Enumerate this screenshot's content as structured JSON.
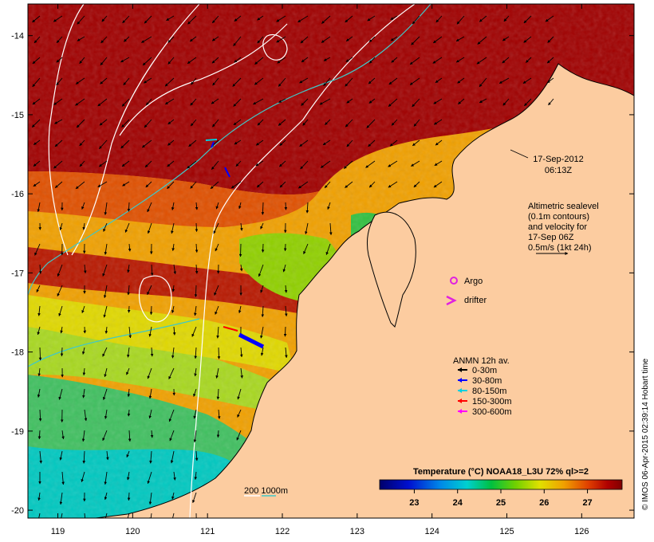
{
  "map": {
    "lon_range": [
      118.6,
      126.7
    ],
    "lat_range": [
      -20.1,
      -13.6
    ],
    "lon_ticks": [
      "119",
      "120",
      "121",
      "122",
      "123",
      "124",
      "125",
      "126"
    ],
    "lat_ticks": [
      "-14",
      "-15",
      "-16",
      "-17",
      "-18",
      "-19",
      "-20"
    ]
  },
  "timestamp": {
    "date": "17-Sep-2012",
    "time": "06:13Z"
  },
  "altimetry_note": {
    "lines": [
      "Altimetric sealevel",
      "(0.1m contours)",
      "and velocity for",
      "17-Sep 06Z",
      "0.5m/s (1kt 24h)"
    ]
  },
  "markers": {
    "argo_label": "Argo",
    "drifter_label": "drifter",
    "argo_color": "#e020e0",
    "drifter_color": "#e020e0"
  },
  "anmn_legend": {
    "title": "ANMN 12h av.",
    "items": [
      {
        "label": "0-30m",
        "color": "#000000"
      },
      {
        "label": "30-80m",
        "color": "#0000ff"
      },
      {
        "label": "80-150m",
        "color": "#00d0e0"
      },
      {
        "label": "150-300m",
        "color": "#ff0000"
      },
      {
        "label": "300-600m",
        "color": "#ff00ff"
      }
    ]
  },
  "colorbar": {
    "title": "Temperature (°C) NOAA18_L3U 72% ql>=2",
    "min": 22.2,
    "max": 27.8,
    "ticks": [
      "23",
      "24",
      "25",
      "26",
      "27"
    ],
    "tick_values": [
      23,
      24,
      25,
      26,
      27
    ]
  },
  "isobath_legend": {
    "label": "200  1000m",
    "color_200": "#ffffff",
    "color_1000": "#40c8c8"
  },
  "credit": "© IMOS 06-Apr-2015 02:39:14 Hobart time",
  "colors": {
    "land": "#fccca0",
    "sea_warm": "#a00000",
    "contour": "#ffffff",
    "isobath": "#40c8c8"
  }
}
